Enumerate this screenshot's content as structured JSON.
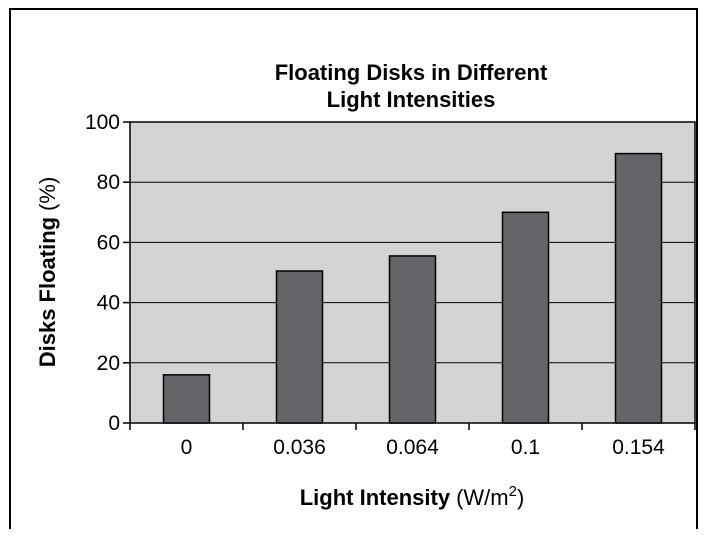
{
  "chart_data": {
    "type": "bar",
    "title_line1": "Floating Disks in Different",
    "title_line2": "Light Intensities",
    "xlabel_main": "Light Intensity",
    "xlabel_unit_prefix": "(W/m",
    "xlabel_unit_exp": "2",
    "xlabel_unit_suffix": ")",
    "ylabel_main": "Disks Floating",
    "ylabel_unit": "(%)",
    "categories": [
      "0",
      "0.036",
      "0.064",
      "0.1",
      "0.154"
    ],
    "values": [
      16,
      50.5,
      55.5,
      70,
      89.5
    ],
    "ylim": [
      0,
      100
    ],
    "yticks": [
      0,
      20,
      40,
      60,
      80,
      100
    ],
    "grid": true,
    "legend": false,
    "colors": {
      "plot_background": "#d4d4d4",
      "bar_fill": "#646569",
      "bar_stroke": "#000000",
      "gridline": "#000000",
      "frame": "#000000"
    }
  }
}
